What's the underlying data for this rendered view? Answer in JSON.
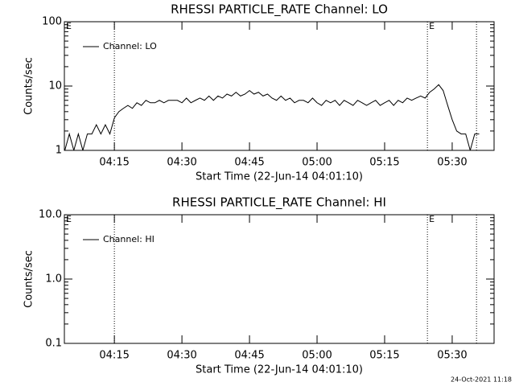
{
  "chart_data": [
    {
      "type": "line",
      "title": "RHESSI PARTICLE_RATE Channel: LO",
      "xlabel": "Start Time (22-Jun-14 04:01:10)",
      "ylabel": "Counts/sec",
      "log_y": true,
      "xlim": [
        3.9,
        99.3
      ],
      "ylim": [
        1,
        100
      ],
      "xticks": [
        {
          "value": 15,
          "label": "04:15"
        },
        {
          "value": 30,
          "label": "04:30"
        },
        {
          "value": 45,
          "label": "04:45"
        },
        {
          "value": 60,
          "label": "05:00"
        },
        {
          "value": 75,
          "label": "05:15"
        },
        {
          "value": 90,
          "label": "05:30"
        }
      ],
      "yticks": [
        1,
        10,
        100
      ],
      "vlines": [
        15,
        84.5,
        95.4
      ],
      "annotations": [
        {
          "text": "E",
          "x": 3.9
        },
        {
          "text": "E",
          "x": 84.5
        }
      ],
      "legend": "upper left",
      "series": [
        {
          "name": "Channel: LO",
          "color": "#000000",
          "x": [
            4,
            5,
            6,
            7,
            8,
            9,
            10,
            11,
            12,
            13,
            14,
            15,
            16,
            17,
            18,
            19,
            20,
            21,
            22,
            23,
            24,
            25,
            26,
            27,
            28,
            29,
            30,
            31,
            32,
            33,
            34,
            35,
            36,
            37,
            38,
            39,
            40,
            41,
            42,
            43,
            44,
            45,
            46,
            47,
            48,
            49,
            50,
            51,
            52,
            53,
            54,
            55,
            56,
            57,
            58,
            59,
            60,
            61,
            62,
            63,
            64,
            65,
            66,
            67,
            68,
            69,
            70,
            71,
            72,
            73,
            74,
            75,
            76,
            77,
            78,
            79,
            80,
            81,
            82,
            83,
            84,
            85,
            86,
            87,
            88,
            89,
            90,
            91,
            92,
            93,
            94,
            95,
            96
          ],
          "values": [
            1,
            1.8,
            1,
            1.8,
            1,
            1.8,
            1.8,
            2.5,
            1.8,
            2.5,
            1.8,
            3.2,
            4,
            4.5,
            5,
            4.5,
            5.5,
            5,
            6,
            5.5,
            5.5,
            6,
            5.5,
            6,
            6,
            6,
            5.5,
            6.5,
            5.5,
            6,
            6.5,
            6,
            7,
            6,
            7,
            6.5,
            7.5,
            7,
            8,
            7,
            7.5,
            8.5,
            7.5,
            8,
            7,
            7.5,
            6.5,
            6,
            7,
            6,
            6.5,
            5.5,
            6,
            6,
            5.5,
            6.5,
            5.5,
            5,
            6,
            5.5,
            6,
            5,
            6,
            5.5,
            5,
            6,
            5.5,
            5,
            5.5,
            6,
            5,
            5.5,
            6,
            5,
            6,
            5.5,
            6.5,
            6,
            6.5,
            7,
            6.5,
            8,
            9,
            10.5,
            8.5,
            5,
            3,
            2,
            1.8,
            1.8,
            1,
            1.8,
            1.8
          ]
        }
      ]
    },
    {
      "type": "line",
      "title": "RHESSI PARTICLE_RATE Channel: HI",
      "xlabel": "Start Time (22-Jun-14 04:01:10)",
      "ylabel": "Counts/sec",
      "log_y": true,
      "xlim": [
        3.9,
        99.3
      ],
      "ylim": [
        0.1,
        10
      ],
      "xticks": [
        {
          "value": 15,
          "label": "04:15"
        },
        {
          "value": 30,
          "label": "04:30"
        },
        {
          "value": 45,
          "label": "04:45"
        },
        {
          "value": 60,
          "label": "05:00"
        },
        {
          "value": 75,
          "label": "05:15"
        },
        {
          "value": 90,
          "label": "05:30"
        }
      ],
      "yticks": [
        0.1,
        {
          "value": 1,
          "label": "1.0"
        },
        {
          "value": 10,
          "label": "10.0"
        }
      ],
      "vlines": [
        15,
        84.5,
        95.4
      ],
      "annotations": [
        {
          "text": "E",
          "x": 3.9
        },
        {
          "text": "E",
          "x": 84.5
        }
      ],
      "legend": "upper left",
      "series": [
        {
          "name": "Channel: HI",
          "color": "#000000",
          "x": [],
          "values": []
        }
      ]
    }
  ],
  "footer": "24-Oct-2021 11:18"
}
